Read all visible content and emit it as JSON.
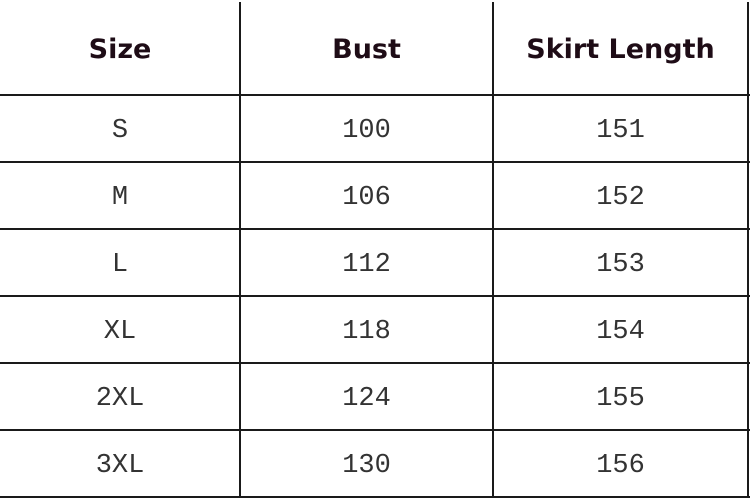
{
  "table": {
    "headers": [
      "Size",
      "Bust",
      "Skirt Length"
    ],
    "rows": [
      [
        "S",
        "100",
        "151"
      ],
      [
        "M",
        "106",
        "152"
      ],
      [
        "L",
        "112",
        "153"
      ],
      [
        "XL",
        "118",
        "154"
      ],
      [
        "2XL",
        "124",
        "155"
      ],
      [
        "3XL",
        "130",
        "156"
      ]
    ]
  }
}
